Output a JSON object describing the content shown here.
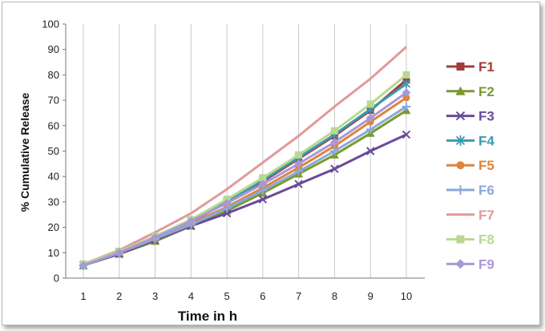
{
  "chart_data": {
    "type": "line",
    "title": "",
    "xlabel": "Time in h",
    "ylabel": "% Cumulative Release",
    "x": [
      1,
      2,
      3,
      4,
      5,
      6,
      7,
      8,
      9,
      10
    ],
    "xlim": [
      1,
      10
    ],
    "ylim": [
      0,
      100
    ],
    "yticks": [
      0,
      10,
      20,
      30,
      40,
      50,
      60,
      70,
      80,
      90,
      100
    ],
    "grid": "vertical",
    "legend_position": "right",
    "series": [
      {
        "name": "F1",
        "color": "#a33b3b",
        "marker": "square",
        "values": [
          5.5,
          10.5,
          16,
          22,
          30,
          38,
          47,
          56,
          66,
          78
        ]
      },
      {
        "name": "F2",
        "color": "#7a9a2e",
        "marker": "triangle",
        "values": [
          5,
          9.5,
          14.5,
          20.5,
          26.5,
          33.5,
          41,
          48.5,
          57,
          66
        ]
      },
      {
        "name": "F3",
        "color": "#6a4a9a",
        "marker": "x",
        "values": [
          5,
          9.5,
          15,
          20.5,
          25.5,
          31,
          37,
          43,
          50,
          56.5
        ]
      },
      {
        "name": "F4",
        "color": "#3a9ab0",
        "marker": "star",
        "values": [
          5,
          10,
          16,
          22.5,
          30,
          38.5,
          47.5,
          56.5,
          66.5,
          76.5
        ]
      },
      {
        "name": "F5",
        "color": "#e0843a",
        "marker": "circle",
        "values": [
          5,
          10,
          15.5,
          21.5,
          28,
          35.5,
          43.5,
          52,
          61.5,
          71
        ]
      },
      {
        "name": "F6",
        "color": "#8aa8d8",
        "marker": "plus",
        "values": [
          5,
          10,
          15.5,
          21,
          27.5,
          34.5,
          42,
          50,
          58.5,
          67.5
        ]
      },
      {
        "name": "F7",
        "color": "#e09a9a",
        "marker": "none",
        "values": [
          5.5,
          11,
          18,
          25.5,
          35,
          45.5,
          56,
          67.5,
          78.5,
          91
        ]
      },
      {
        "name": "F8",
        "color": "#b8d890",
        "marker": "square",
        "values": [
          5.5,
          10.5,
          16.5,
          23,
          31,
          39.5,
          48.5,
          58,
          68.5,
          80
        ]
      },
      {
        "name": "F9",
        "color": "#a898d8",
        "marker": "diamond",
        "values": [
          5,
          10,
          16,
          22.5,
          29.5,
          37,
          45,
          53.5,
          63,
          73
        ]
      }
    ]
  }
}
